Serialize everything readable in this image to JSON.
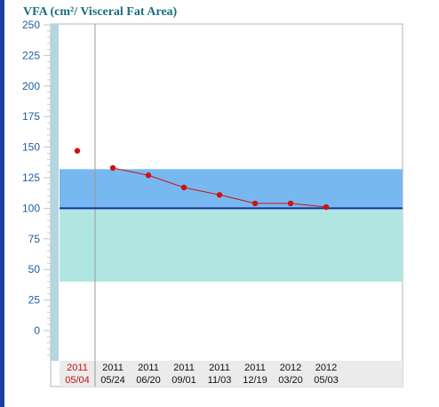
{
  "title_main": "VFA",
  "title_paren": "(cm²/ Visceral Fat Area)",
  "colors": {
    "title": "#1d6e7e",
    "axis_text": "#1f5fa0",
    "upper_band": "#78b8f0",
    "lower_band": "#b0e6e2",
    "reference_line": "#1a2fa0",
    "series": "#d11010",
    "highlight_date": "#cc1111",
    "side_bar": "#b4d6de"
  },
  "chart_data": {
    "type": "line",
    "title": "VFA (cm²/ Visceral Fat Area)",
    "ylim": [
      -25,
      250
    ],
    "yticks": [
      0,
      25,
      50,
      75,
      100,
      125,
      150,
      175,
      200,
      225,
      250
    ],
    "bands": [
      {
        "from": 100,
        "to": 132,
        "color": "upper_band"
      },
      {
        "from": 40,
        "to": 100,
        "color": "lower_band"
      }
    ],
    "reference_line": 100,
    "categories": [
      {
        "year": "2011",
        "date": "05/04",
        "highlight": true
      },
      {
        "year": "2011",
        "date": "05/24"
      },
      {
        "year": "2011",
        "date": "06/20"
      },
      {
        "year": "2011",
        "date": "09/01"
      },
      {
        "year": "2011",
        "date": "11/03"
      },
      {
        "year": "2011",
        "date": "12/19"
      },
      {
        "year": "2012",
        "date": "03/20"
      },
      {
        "year": "2012",
        "date": "05/03"
      }
    ],
    "series": [
      {
        "values": [
          147,
          133,
          127,
          117,
          111,
          104,
          104,
          101
        ],
        "connect_from": 1
      }
    ]
  }
}
